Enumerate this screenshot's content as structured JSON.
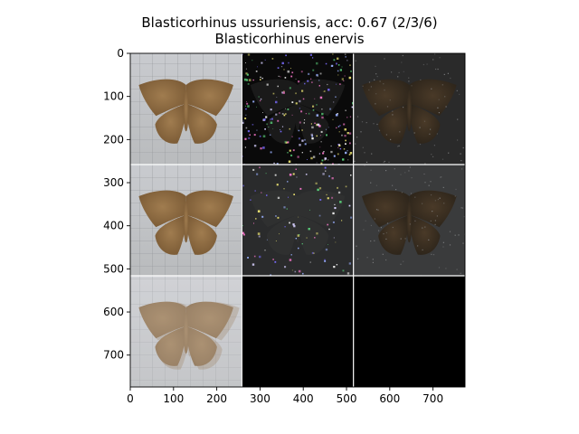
{
  "figure": {
    "title_line1": "Blasticorhinus ussuriensis, acc: 0.67 (2/3/6)",
    "title_line2": "Blasticorhinus enervis"
  },
  "chart_data": {
    "type": "image-grid",
    "title": "Blasticorhinus ussuriensis, acc: 0.67 (2/3/6)",
    "subtitle": "Blasticorhinus enervis",
    "xlim": [
      0,
      774
    ],
    "ylim": [
      774,
      0
    ],
    "grid": false,
    "x_ticks": [
      0,
      100,
      200,
      300,
      400,
      500,
      600,
      700
    ],
    "y_ticks": [
      0,
      100,
      200,
      300,
      400,
      500,
      600,
      700
    ],
    "rows": 3,
    "cols": 3,
    "tiles": [
      {
        "row": 0,
        "col": 0,
        "content": "moth-photo"
      },
      {
        "row": 0,
        "col": 1,
        "content": "sparse-saliency"
      },
      {
        "row": 0,
        "col": 2,
        "content": "masked-moth-dark"
      },
      {
        "row": 1,
        "col": 0,
        "content": "moth-photo"
      },
      {
        "row": 1,
        "col": 1,
        "content": "sparse-saliency"
      },
      {
        "row": 1,
        "col": 2,
        "content": "masked-moth-dark"
      },
      {
        "row": 2,
        "col": 0,
        "content": "moth-photo-faded"
      },
      {
        "row": 2,
        "col": 1,
        "content": "black"
      },
      {
        "row": 2,
        "col": 2,
        "content": "black"
      }
    ]
  }
}
